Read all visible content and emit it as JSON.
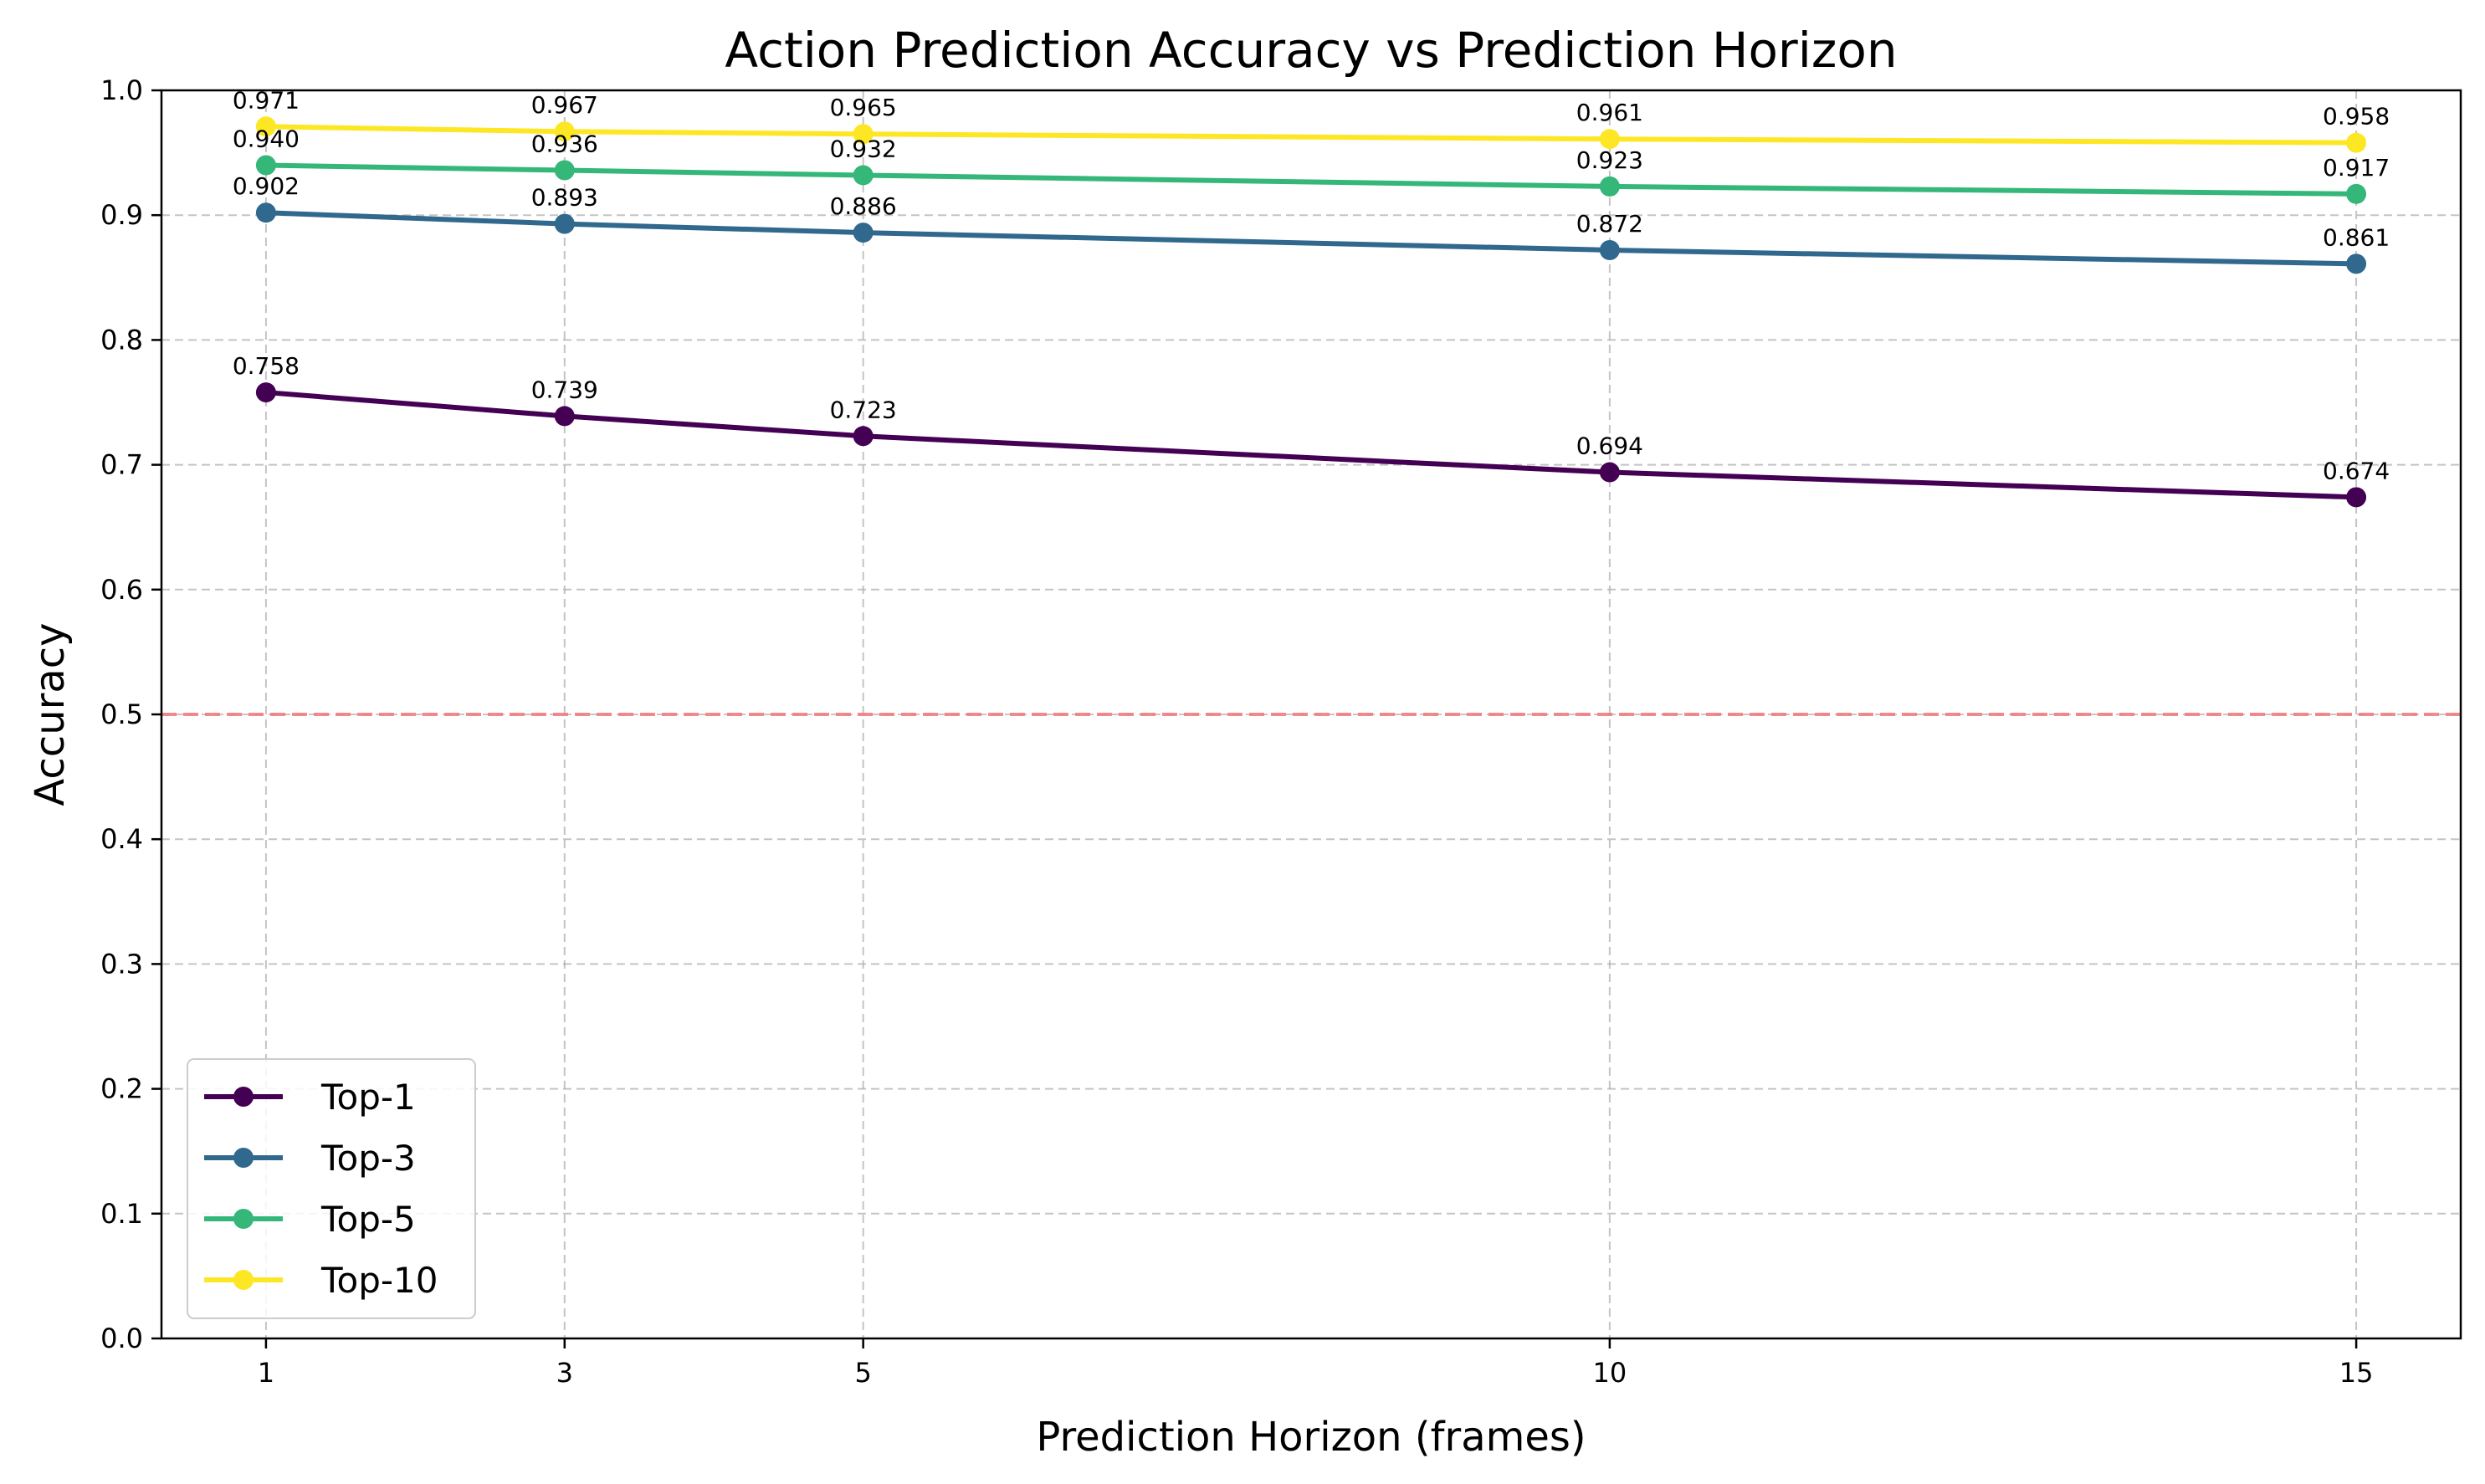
{
  "chart_data": {
    "type": "line",
    "title": "Action Prediction Accuracy vs Prediction Horizon",
    "xlabel": "Prediction Horizon (frames)",
    "ylabel": "Accuracy",
    "x": [
      1,
      3,
      5,
      10,
      15
    ],
    "xticks": [
      1,
      3,
      5,
      10,
      15
    ],
    "xlim": [
      0.3,
      15.7
    ],
    "ylim": [
      0.0,
      1.0
    ],
    "yticks": [
      0.0,
      0.1,
      0.2,
      0.3,
      0.4,
      0.5,
      0.6,
      0.7,
      0.8,
      0.9,
      1.0
    ],
    "grid": true,
    "legend_position": "lower-left",
    "reference_line": {
      "y": 0.5,
      "color": "#f08080",
      "style": "dashed"
    },
    "series": [
      {
        "name": "Top-1",
        "color": "#440154",
        "values": [
          0.758,
          0.739,
          0.723,
          0.694,
          0.674
        ]
      },
      {
        "name": "Top-3",
        "color": "#31688e",
        "values": [
          0.902,
          0.893,
          0.886,
          0.872,
          0.861
        ]
      },
      {
        "name": "Top-5",
        "color": "#35b779",
        "values": [
          0.94,
          0.936,
          0.932,
          0.923,
          0.917
        ]
      },
      {
        "name": "Top-10",
        "color": "#fde725",
        "values": [
          0.971,
          0.967,
          0.965,
          0.961,
          0.958
        ]
      }
    ]
  }
}
